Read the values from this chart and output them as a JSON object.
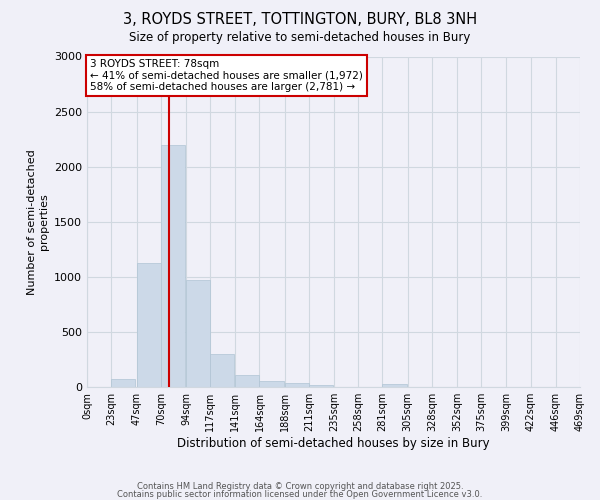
{
  "title": "3, ROYDS STREET, TOTTINGTON, BURY, BL8 3NH",
  "subtitle": "Size of property relative to semi-detached houses in Bury",
  "xlabel": "Distribution of semi-detached houses by size in Bury",
  "ylabel": "Number of semi-detached\nproperties",
  "bin_labels": [
    "0sqm",
    "23sqm",
    "47sqm",
    "70sqm",
    "94sqm",
    "117sqm",
    "141sqm",
    "164sqm",
    "188sqm",
    "211sqm",
    "235sqm",
    "258sqm",
    "281sqm",
    "305sqm",
    "328sqm",
    "352sqm",
    "375sqm",
    "399sqm",
    "422sqm",
    "446sqm",
    "469sqm"
  ],
  "bin_edges": [
    0,
    23,
    47,
    70,
    94,
    117,
    141,
    164,
    188,
    211,
    235,
    258,
    281,
    305,
    328,
    352,
    375,
    399,
    422,
    446,
    469
  ],
  "values": [
    0,
    70,
    1130,
    2200,
    975,
    300,
    110,
    60,
    40,
    20,
    5,
    5,
    30,
    0,
    0,
    0,
    0,
    0,
    0,
    0
  ],
  "bar_color": "#ccd9e8",
  "bar_edge_color": "#b0c4d4",
  "property_size": 78,
  "red_line_color": "#cc0000",
  "annotation_text": "3 ROYDS STREET: 78sqm\n← 41% of semi-detached houses are smaller (1,972)\n58% of semi-detached houses are larger (2,781) →",
  "annotation_box_color": "#ffffff",
  "annotation_box_edge": "#cc0000",
  "yticks": [
    0,
    500,
    1000,
    1500,
    2000,
    2500,
    3000
  ],
  "ylim": [
    0,
    3000
  ],
  "footer1": "Contains HM Land Registry data © Crown copyright and database right 2025.",
  "footer2": "Contains public sector information licensed under the Open Government Licence v3.0.",
  "bg_color": "#f0f0f8",
  "grid_color": "#d0d8e0"
}
